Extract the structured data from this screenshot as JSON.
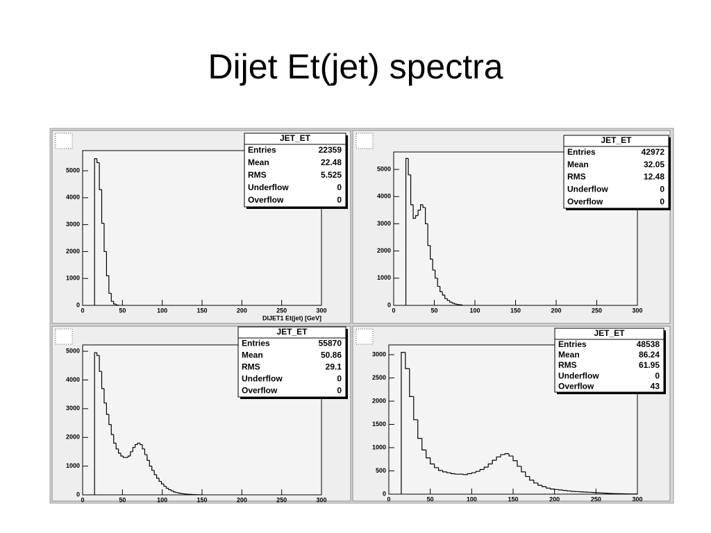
{
  "title": "Dijet Et(jet) spectra",
  "chart_data": [
    {
      "type": "histogram",
      "xlabel": "DIJET1 Et(jet) [GeV]",
      "stats": {
        "title": "JET_ET",
        "rows": [
          {
            "label": "Entries",
            "value": 22359
          },
          {
            "label": "Mean",
            "value": 22.48
          },
          {
            "label": "RMS",
            "value": 5.525
          },
          {
            "label": "Underflow",
            "value": 0
          },
          {
            "label": "Overflow",
            "value": 0
          }
        ]
      },
      "bins": [
        15,
        18,
        21,
        24,
        27,
        30,
        33,
        36,
        39,
        42,
        45
      ],
      "counts": [
        5450,
        5300,
        4300,
        3050,
        2000,
        1100,
        450,
        150,
        50,
        10
      ],
      "xlim": [
        0,
        300
      ],
      "xticks": [
        0,
        50,
        100,
        150,
        200,
        250,
        300
      ],
      "ylim": [
        0,
        5750
      ],
      "yticks": [
        0,
        1000,
        2000,
        3000,
        4000,
        5000
      ]
    },
    {
      "type": "histogram",
      "stats": {
        "title": "JET_ET",
        "rows": [
          {
            "label": "Entries",
            "value": 42972
          },
          {
            "label": "Mean",
            "value": 32.05
          },
          {
            "label": "RMS",
            "value": 12.48
          },
          {
            "label": "Underflow",
            "value": 0
          },
          {
            "label": "Overflow",
            "value": 0
          }
        ]
      },
      "bins": [
        15,
        18,
        21,
        24,
        27,
        30,
        33,
        36,
        39,
        42,
        45,
        48,
        51,
        54,
        57,
        60,
        63,
        66,
        69,
        72,
        75,
        78,
        81,
        84
      ],
      "counts": [
        5400,
        4800,
        3700,
        3200,
        3300,
        3500,
        3700,
        3600,
        3000,
        2200,
        1700,
        1300,
        1000,
        700,
        500,
        380,
        250,
        180,
        120,
        80,
        50,
        30,
        20
      ],
      "xlim": [
        0,
        300
      ],
      "xticks": [
        0,
        50,
        100,
        150,
        200,
        250,
        300
      ],
      "ylim": [
        0,
        5640
      ],
      "yticks": [
        0,
        1000,
        2000,
        3000,
        4000,
        5000
      ]
    },
    {
      "type": "histogram",
      "stats": {
        "title": "JET_ET",
        "rows": [
          {
            "label": "Entries",
            "value": 55870
          },
          {
            "label": "Mean",
            "value": 50.86
          },
          {
            "label": "RMS",
            "value": 29.1
          },
          {
            "label": "Underflow",
            "value": 0
          },
          {
            "label": "Overflow",
            "value": 0
          }
        ]
      },
      "bins": [
        15,
        18,
        21,
        24,
        27,
        30,
        33,
        36,
        39,
        42,
        45,
        48,
        51,
        54,
        57,
        60,
        63,
        66,
        69,
        72,
        75,
        78,
        81,
        84,
        87,
        90,
        93,
        96,
        99,
        102,
        105,
        108,
        111,
        114,
        117,
        120,
        123,
        126,
        129,
        132,
        135,
        138,
        141,
        144,
        147,
        150
      ],
      "counts": [
        4950,
        4850,
        4300,
        3700,
        3200,
        2800,
        2450,
        2100,
        1800,
        1600,
        1450,
        1350,
        1300,
        1300,
        1350,
        1500,
        1650,
        1750,
        1800,
        1750,
        1600,
        1400,
        1200,
        1000,
        850,
        700,
        580,
        470,
        380,
        300,
        230,
        180,
        140,
        100,
        80,
        60,
        45,
        35,
        25,
        20,
        15,
        10,
        8,
        5,
        3
      ],
      "xlim": [
        0,
        300
      ],
      "xticks": [
        0,
        50,
        100,
        150,
        200,
        250,
        300
      ],
      "ylim": [
        0,
        5220
      ],
      "yticks": [
        0,
        1000,
        2000,
        3000,
        4000,
        5000
      ]
    },
    {
      "type": "histogram",
      "stats": {
        "title": "JET_ET",
        "rows": [
          {
            "label": "Entries",
            "value": 48538
          },
          {
            "label": "Mean",
            "value": 86.24
          },
          {
            "label": "RMS",
            "value": 61.95
          },
          {
            "label": "Underflow",
            "value": 0
          },
          {
            "label": "Overflow",
            "value": 43
          }
        ]
      },
      "bins": [
        15,
        20,
        25,
        30,
        35,
        40,
        45,
        50,
        55,
        60,
        65,
        70,
        75,
        80,
        85,
        90,
        95,
        100,
        105,
        110,
        115,
        120,
        125,
        130,
        135,
        140,
        145,
        150,
        155,
        160,
        165,
        170,
        175,
        180,
        185,
        190,
        195,
        200,
        205,
        210,
        215,
        220,
        225,
        230,
        235,
        240,
        245,
        250,
        255,
        260,
        265,
        270,
        275,
        280,
        285,
        290,
        295,
        300
      ],
      "counts": [
        3050,
        2700,
        2100,
        1600,
        1200,
        950,
        780,
        650,
        570,
        510,
        480,
        460,
        440,
        430,
        430,
        420,
        440,
        460,
        490,
        530,
        580,
        650,
        730,
        800,
        850,
        870,
        820,
        720,
        600,
        480,
        380,
        300,
        240,
        190,
        160,
        130,
        110,
        100,
        90,
        80,
        70,
        60,
        55,
        50,
        45,
        40,
        35,
        30,
        25,
        20,
        15,
        12,
        10,
        8,
        6,
        5,
        4
      ],
      "xlim": [
        0,
        300
      ],
      "xticks": [
        0,
        50,
        100,
        150,
        200,
        250,
        300
      ],
      "ylim": [
        0,
        3210
      ],
      "yticks": [
        0,
        500,
        1000,
        1500,
        2000,
        2500,
        3000
      ]
    }
  ]
}
